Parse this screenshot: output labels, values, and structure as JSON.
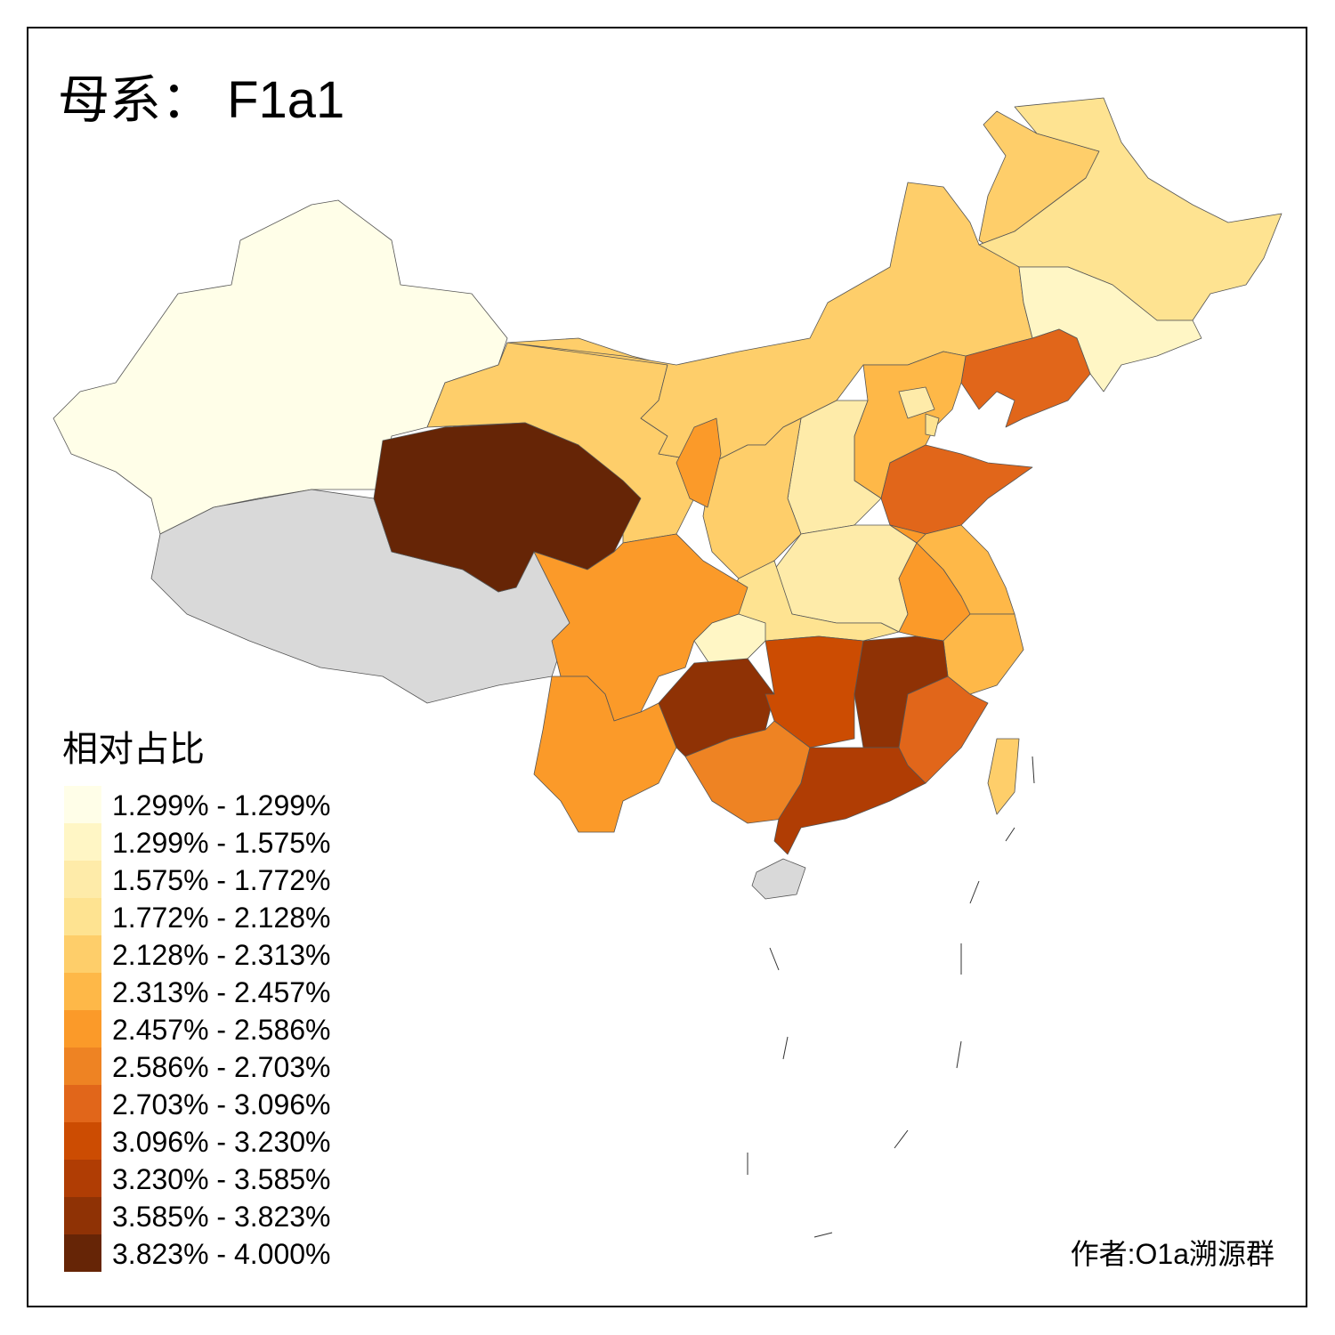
{
  "title": "母系： F1a1",
  "legend": {
    "title": "相对占比",
    "items": [
      {
        "label": "1.299% - 1.299%",
        "color": "#fffee8"
      },
      {
        "label": "1.299% - 1.575%",
        "color": "#fff6c5"
      },
      {
        "label": "1.575% - 1.772%",
        "color": "#feeba9"
      },
      {
        "label": "1.772% - 2.128%",
        "color": "#fee391"
      },
      {
        "label": "2.128% - 2.313%",
        "color": "#fece6a"
      },
      {
        "label": "2.313% - 2.457%",
        "color": "#feb848"
      },
      {
        "label": "2.457% - 2.586%",
        "color": "#fb9a29"
      },
      {
        "label": "2.586% - 2.703%",
        "color": "#ee8323"
      },
      {
        "label": "2.703% - 3.096%",
        "color": "#e1661a"
      },
      {
        "label": "3.096% - 3.230%",
        "color": "#cc4c02"
      },
      {
        "label": "3.230% - 3.585%",
        "color": "#b03d04"
      },
      {
        "label": "3.585% - 3.823%",
        "color": "#8f3205"
      },
      {
        "label": "3.823% - 4.000%",
        "color": "#662506"
      }
    ]
  },
  "credit": "作者:O1a溯源群"
}
